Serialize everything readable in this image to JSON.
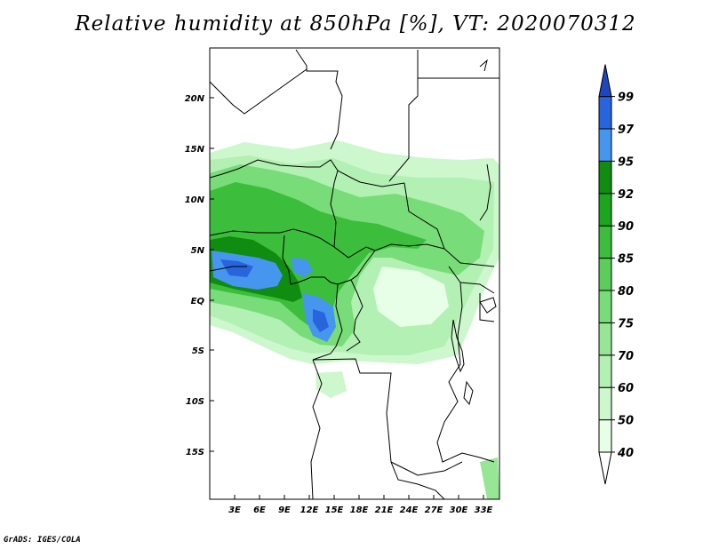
{
  "title": "Relative humidity at 850hPa [%], VT: 2020070312",
  "credit": "GrADS: IGES/COLA",
  "map": {
    "lat_labels": [
      "20N",
      "15N",
      "10N",
      "5N",
      "EQ",
      "5S",
      "10S",
      "15S"
    ],
    "lon_labels": [
      "3E",
      "6E",
      "9E",
      "12E",
      "15E",
      "18E",
      "21E",
      "24E",
      "27E",
      "30E",
      "33E"
    ]
  },
  "colorbar": {
    "levels": [
      "40",
      "50",
      "60",
      "70",
      "75",
      "80",
      "85",
      "90",
      "92",
      "95",
      "97",
      "99"
    ],
    "colors": [
      "#ffffff",
      "#e6ffe6",
      "#cdf7cd",
      "#b3f0b3",
      "#96e696",
      "#78dc78",
      "#5acd5a",
      "#3cbe3c",
      "#1ea51e",
      "#108c10",
      "#4696f0",
      "#2864dc",
      "#1e46be"
    ]
  }
}
